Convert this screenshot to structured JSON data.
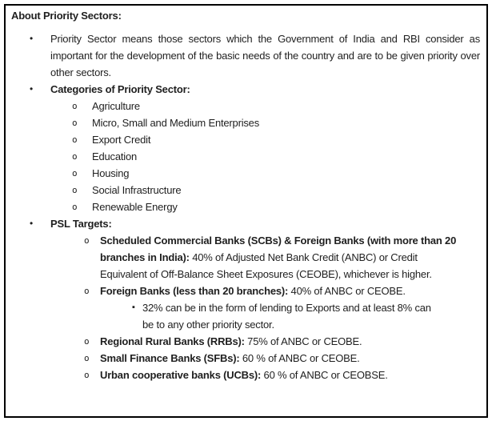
{
  "panel": {
    "title": "About Priority Sectors:"
  },
  "markers": {
    "level1": "•",
    "level2": "o",
    "level3": "▪"
  },
  "definition": {
    "text": "Priority Sector means those sectors which the Government of India and RBI consider as important for the development of the basic needs of the country and are to be given priority over other sectors."
  },
  "categories": {
    "header": "Categories of Priority Sector:",
    "items": [
      "Agriculture",
      "Micro, Small and Medium Enterprises",
      "Export Credit",
      "Education",
      "Housing",
      "Social Infrastructure",
      "Renewable Energy"
    ]
  },
  "psl": {
    "header": "PSL Targets:",
    "items": [
      {
        "bold": "Scheduled Commercial Banks (SCBs) & Foreign Banks (with more than 20\nbranches in India):",
        "rest": " 40% of Adjusted Net Bank Credit (ANBC) or Credit\nEquivalent of Off-Balance Sheet Exposures (CEOBE), whichever is higher."
      },
      {
        "bold": "Foreign Banks (less than 20 branches):",
        "rest": " 40% of ANBC or CEOBE.",
        "sub": "32% can be in the form of lending to Exports and at least 8% can\nbe to any other priority sector."
      },
      {
        "bold": "Regional Rural Banks (RRBs):",
        "rest": " 75% of ANBC or CEOBE."
      },
      {
        "bold": "Small Finance Banks (SFBs):",
        "rest": " 60 % of ANBC or CEOBE."
      },
      {
        "bold": "Urban cooperative banks (UCBs):",
        "rest": " 60 % of ANBC or CEOBSE."
      }
    ]
  },
  "colors": {
    "text": "#1f1f1f",
    "border": "#000000",
    "background": "#ffffff"
  }
}
